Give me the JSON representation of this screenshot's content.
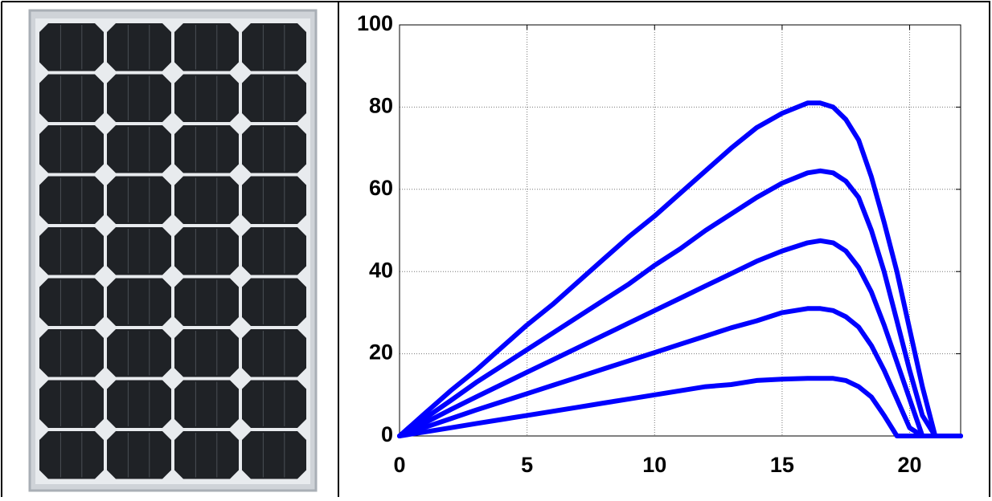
{
  "chart_data": {
    "type": "line",
    "x": [
      0,
      1,
      2,
      3,
      4,
      5,
      6,
      7,
      8,
      9,
      10,
      11,
      12,
      13,
      14,
      15,
      16,
      16.5,
      17,
      17.5,
      18,
      18.5,
      19,
      19.5,
      20,
      20.5,
      21,
      22
    ],
    "series": [
      {
        "color": "#0000ff",
        "values": [
          0,
          5.5,
          11,
          16,
          21.5,
          27,
          32,
          37.5,
          43,
          48.5,
          53.5,
          59,
          64.5,
          70,
          75,
          78.5,
          81,
          81,
          80,
          77,
          72,
          63,
          52,
          40,
          26,
          12,
          0,
          0
        ]
      },
      {
        "color": "#0000ff",
        "values": [
          0,
          4.3,
          8.6,
          13,
          17,
          21,
          25,
          29,
          33,
          37,
          41.5,
          45.5,
          50,
          54,
          58,
          61.5,
          64,
          64.5,
          64,
          62,
          58,
          50,
          40,
          28,
          16,
          5,
          0,
          0
        ]
      },
      {
        "color": "#0000ff",
        "values": [
          0,
          3.2,
          6.4,
          9.5,
          12.5,
          15.5,
          18.5,
          21.5,
          24.5,
          27.5,
          30.5,
          33.5,
          36.5,
          39.5,
          42.5,
          45,
          47,
          47.5,
          47,
          45,
          41,
          35,
          27,
          18,
          9,
          0,
          0,
          0
        ]
      },
      {
        "color": "#0000ff",
        "values": [
          0,
          2.1,
          4.2,
          6.3,
          8.3,
          10.3,
          12.3,
          14.3,
          16.3,
          18.3,
          20.3,
          22.3,
          24.3,
          26.3,
          28,
          30,
          31,
          31,
          30.5,
          29,
          26.5,
          22,
          16,
          9,
          2,
          0,
          0,
          0
        ]
      },
      {
        "color": "#0000ff",
        "values": [
          0,
          1,
          2,
          3,
          4,
          5,
          6,
          7,
          8,
          9,
          10,
          11,
          12,
          12.5,
          13.5,
          13.8,
          14,
          14,
          14,
          13.5,
          12,
          9.5,
          5,
          0,
          0,
          0,
          0,
          0
        ]
      }
    ],
    "xlim": [
      0,
      22
    ],
    "xticks": [
      0,
      5,
      10,
      15,
      20
    ],
    "ylim": [
      0,
      100
    ],
    "yticks": [
      0,
      20,
      40,
      60,
      80,
      100
    ],
    "grid": true
  }
}
